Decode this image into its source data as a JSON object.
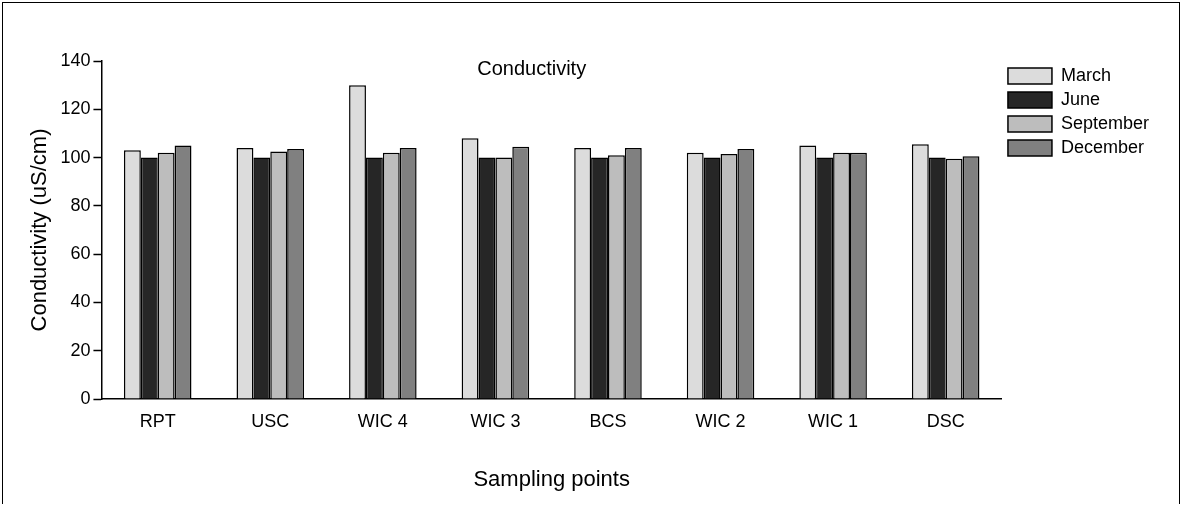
{
  "chart_data": {
    "type": "bar",
    "title": "Conductivity",
    "xlabel": "Sampling points",
    "ylabel": "Conductivity (uS/cm)",
    "categories": [
      "RPT",
      "USC",
      "WIC 4",
      "WIC 3",
      "BCS",
      "WIC 2",
      "WIC 1",
      "DSC"
    ],
    "series": [
      {
        "name": "March",
        "color": "#dcdcdc",
        "values": [
          103,
          104,
          130,
          108,
          104,
          102,
          105,
          105.5
        ]
      },
      {
        "name": "June",
        "color": "#262626",
        "values": [
          100,
          100,
          100,
          100,
          100,
          100,
          100,
          100
        ]
      },
      {
        "name": "September",
        "color": "#bdbdbd",
        "values": [
          102,
          102.5,
          102,
          100,
          101,
          101.5,
          102,
          99.5
        ]
      },
      {
        "name": "December",
        "color": "#808080",
        "values": [
          105,
          103.5,
          104,
          104.5,
          104,
          103.5,
          102,
          100.5
        ]
      }
    ],
    "ylim": [
      0,
      140
    ],
    "yticks": [
      0,
      20,
      40,
      60,
      80,
      100,
      120,
      140
    ],
    "grid": false,
    "legend": "top right"
  }
}
